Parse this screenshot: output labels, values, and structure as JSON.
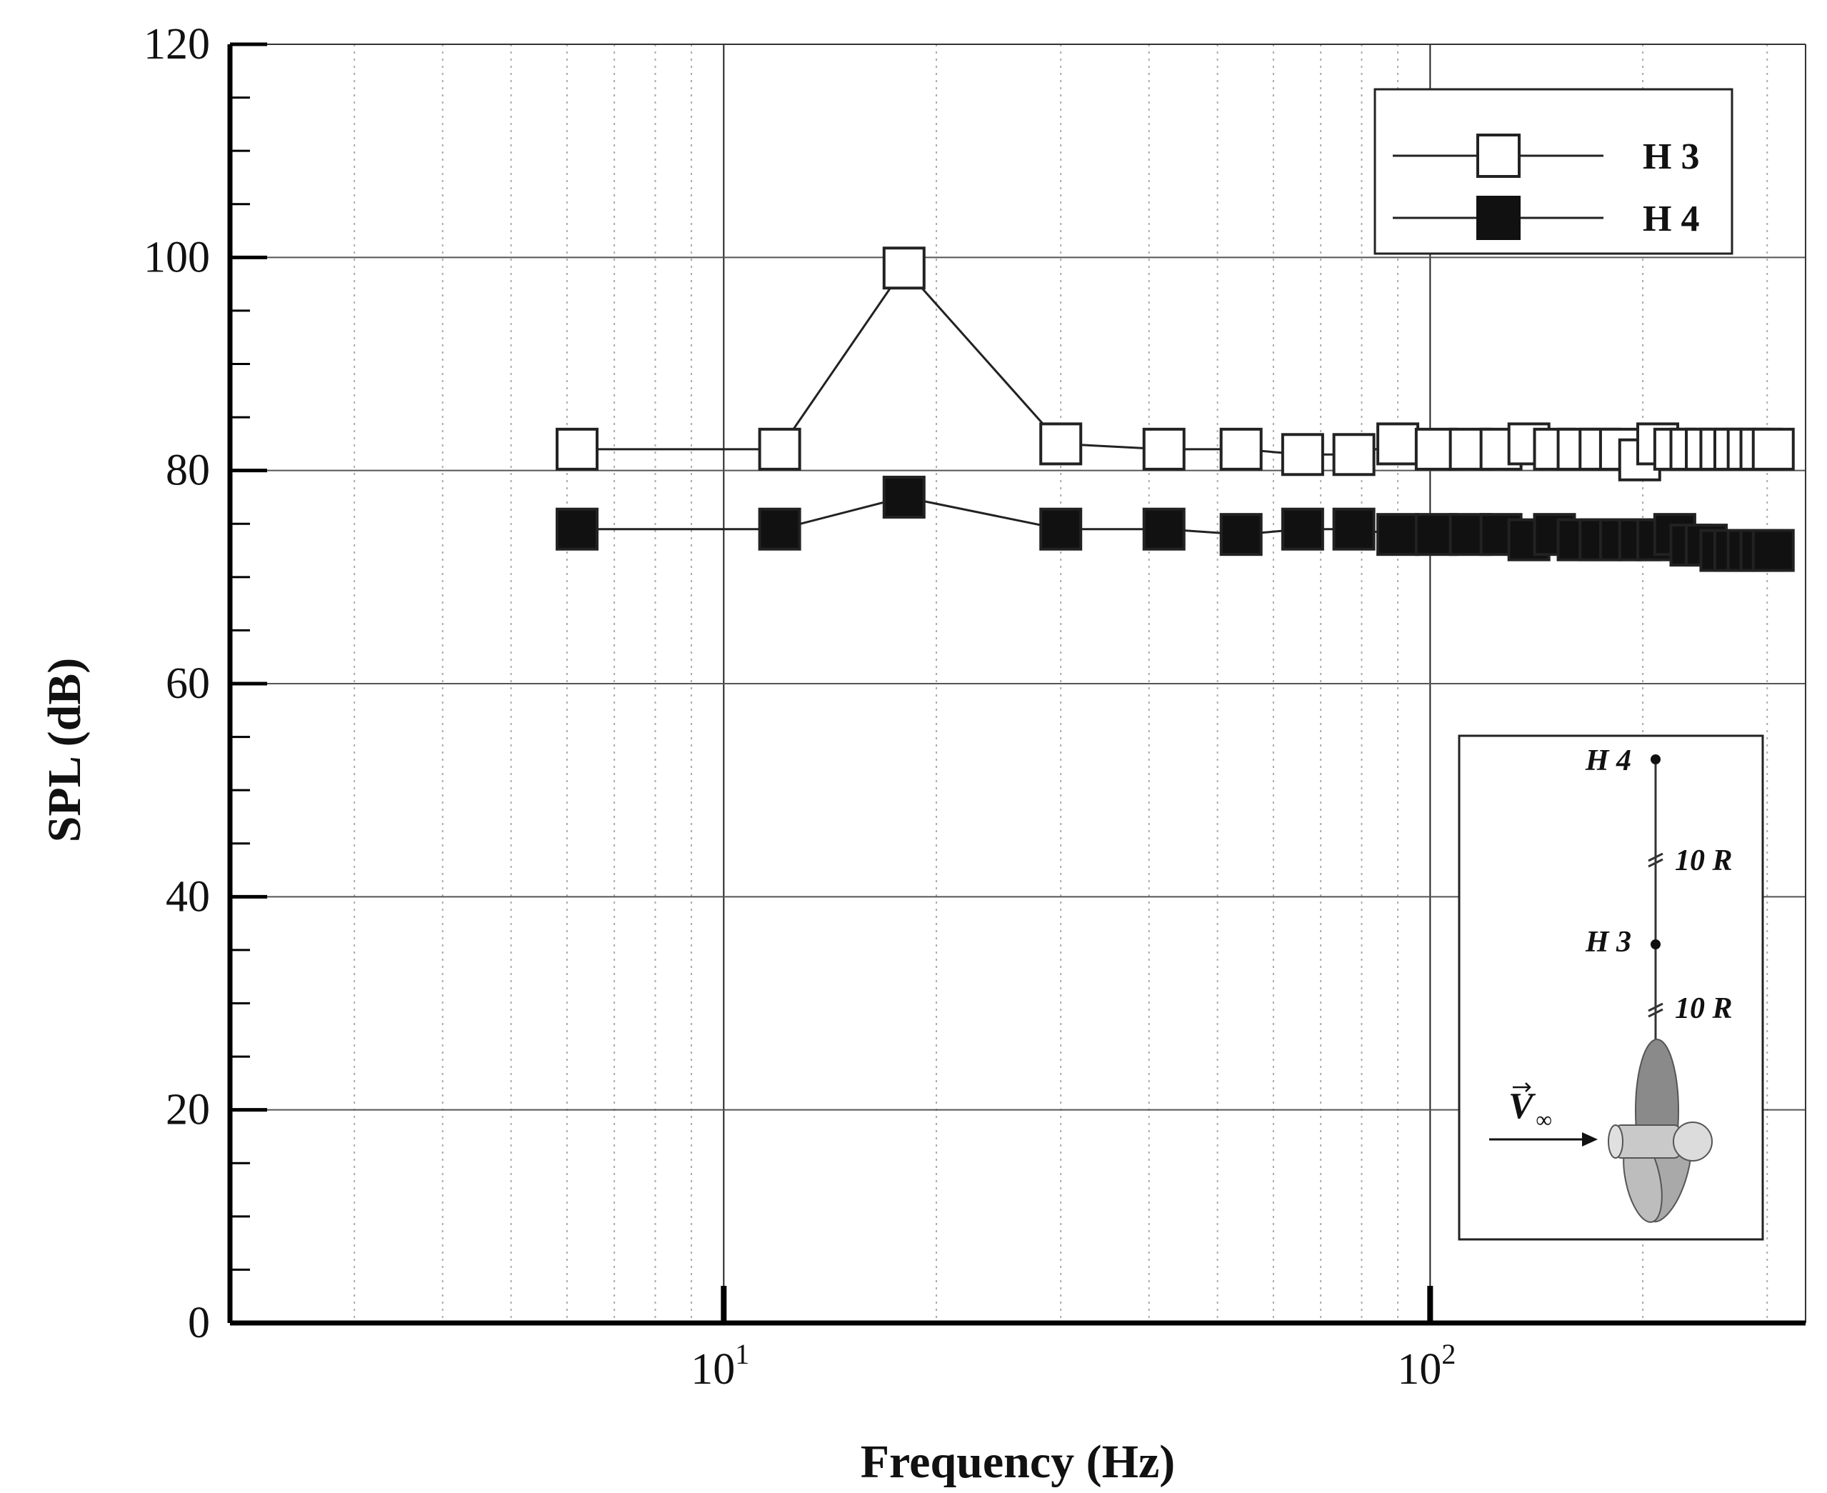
{
  "chart_data": {
    "type": "line",
    "xlabel": "Frequency (Hz)",
    "ylabel": "SPL (dB)",
    "x_scale": "log",
    "xlim": [
      2,
      340
    ],
    "ylim": [
      0,
      120
    ],
    "x_ticks": [
      {
        "value": 10,
        "base": "10",
        "exp": "1"
      },
      {
        "value": 100,
        "base": "10",
        "exp": "2"
      }
    ],
    "y_ticks": [
      "0",
      "20",
      "40",
      "60",
      "80",
      "100",
      "120"
    ],
    "grid": true,
    "legend_position": "top-right",
    "series": [
      {
        "name": "H 3",
        "marker": "open-square",
        "x": [
          6.2,
          12,
          18,
          30,
          42,
          54,
          66,
          78,
          90,
          102,
          114,
          126,
          138,
          150,
          162,
          174,
          186,
          198,
          210,
          222,
          234,
          246,
          258,
          270,
          282,
          294,
          306
        ],
        "y": [
          82,
          82,
          99,
          82.5,
          82,
          82,
          81.5,
          81.5,
          82.5,
          82,
          82,
          82,
          82.5,
          82,
          82,
          82,
          82,
          81,
          82.5,
          82,
          82,
          82,
          82,
          82,
          82,
          82,
          82
        ]
      },
      {
        "name": "H 4",
        "marker": "filled-square",
        "x": [
          6.2,
          12,
          18,
          30,
          42,
          54,
          66,
          78,
          90,
          102,
          114,
          126,
          138,
          150,
          162,
          174,
          186,
          198,
          210,
          222,
          234,
          246,
          258,
          270,
          282,
          294,
          306
        ],
        "y": [
          74.5,
          74.5,
          77.5,
          74.5,
          74.5,
          74,
          74.5,
          74.5,
          74,
          74,
          74,
          74,
          73.5,
          74,
          73.5,
          73.5,
          73.5,
          73.5,
          73.5,
          74,
          73,
          73,
          72.5,
          72.5,
          72.5,
          72.5,
          72.5
        ]
      }
    ],
    "inset": {
      "label_h4": "H 4",
      "label_h3": "H 3",
      "dist_upper": "10 R",
      "dist_lower": "10 R",
      "velocity_label": "V",
      "velocity_sub": "∞"
    }
  }
}
